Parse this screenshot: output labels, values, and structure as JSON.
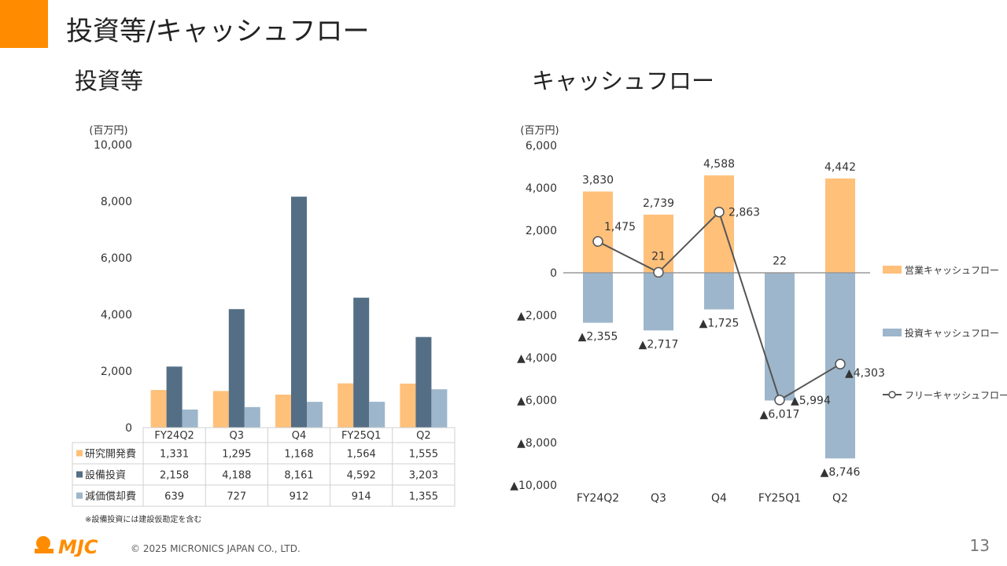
{
  "page": {
    "title": "投資等/キャッシュフロー",
    "left_title": "投資等",
    "right_title": "キャッシュフロー",
    "note": "※設備投資には建設仮勘定を含む",
    "copyright": "© 2025 MICRONICS JAPAN CO., LTD.",
    "page_number": "13",
    "logo_text": "MJC",
    "accent_color": "#ff8c00"
  },
  "chart_data": [
    {
      "type": "bar",
      "unit_label": "(百万円)",
      "categories": [
        "FY24Q2",
        "Q3",
        "Q4",
        "FY25Q1",
        "Q2"
      ],
      "ylim": [
        0,
        10000
      ],
      "yticks": [
        0,
        2000,
        4000,
        6000,
        8000,
        10000
      ],
      "ytick_labels": [
        "0",
        "2,000",
        "4,000",
        "6,000",
        "8,000",
        "10,000"
      ],
      "series": [
        {
          "name": "研究開発費",
          "color": "#ffc07a",
          "values": [
            1331,
            1295,
            1168,
            1564,
            1555
          ],
          "labels": [
            "1,331",
            "1,295",
            "1,168",
            "1,564",
            "1,555"
          ]
        },
        {
          "name": "設備投資",
          "color": "#546e85",
          "values": [
            2158,
            4188,
            8161,
            4592,
            3203
          ],
          "labels": [
            "2,158",
            "4,188",
            "8,161",
            "4,592",
            "3,203"
          ]
        },
        {
          "name": "減価償却費",
          "color": "#9db6cb",
          "values": [
            639,
            727,
            912,
            914,
            1355
          ],
          "labels": [
            "639",
            "727",
            "912",
            "914",
            "1,355"
          ]
        }
      ]
    },
    {
      "type": "bar",
      "unit_label": "(百万円)",
      "categories": [
        "FY24Q2",
        "Q3",
        "Q4",
        "FY25Q1",
        "Q2"
      ],
      "ylim": [
        -10000,
        6000
      ],
      "yticks": [
        6000,
        4000,
        2000,
        0,
        -2000,
        -4000,
        -6000,
        -8000,
        -10000
      ],
      "ytick_labels": [
        "6,000",
        "4,000",
        "2,000",
        "0",
        "▲2,000",
        "▲4,000",
        "▲6,000",
        "▲8,000",
        "▲10,000"
      ],
      "series": [
        {
          "name": "営業キャッシュフロー",
          "kind": "bar",
          "color": "#ffc07a",
          "values": [
            3830,
            2739,
            4588,
            22,
            4442
          ],
          "labels": [
            "3,830",
            "2,739",
            "4,588",
            "22",
            "4,442"
          ]
        },
        {
          "name": "投資キャッシュフロー",
          "kind": "bar",
          "color": "#9db6cb",
          "values": [
            -2355,
            -2717,
            -1725,
            -6017,
            -8746
          ],
          "labels": [
            "▲2,355",
            "▲2,717",
            "▲1,725",
            "▲6,017",
            "▲8,746"
          ]
        },
        {
          "name": "フリーキャッシュフロー",
          "kind": "line",
          "color": "#555555",
          "values": [
            1475,
            21,
            2863,
            -5994,
            -4303
          ],
          "labels": [
            "1,475",
            "21",
            "2,863",
            "▲5,994",
            "▲4,303"
          ]
        }
      ]
    }
  ]
}
